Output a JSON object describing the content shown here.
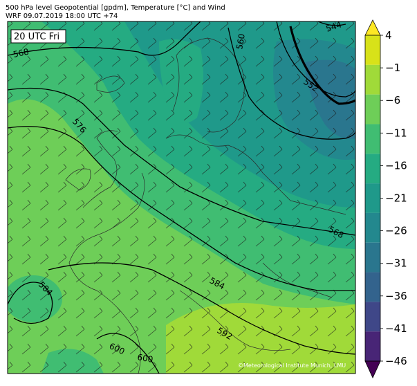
{
  "header": {
    "line1": "500 hPa level Geopotential [gpdm], Temperature [°C] and Wind",
    "line2": "WRF 09.07.2019 18:00 UTC +74"
  },
  "time_box": "20 UTC Fri",
  "copyright": "©Meteorological Institute Munich, LMU",
  "colorbar": {
    "ticks": [
      "4",
      "−1",
      "−6",
      "−11",
      "−16",
      "−21",
      "−26",
      "−31",
      "−36",
      "−41",
      "−46"
    ],
    "colors": [
      "#fde725",
      "#d8e219",
      "#a0da39",
      "#6ece58",
      "#40bd72",
      "#25ab82",
      "#1f998a",
      "#23888e",
      "#2a768e",
      "#33638d",
      "#3f4788",
      "#482576",
      "#440154"
    ]
  },
  "contours": [
    {
      "label": "544"
    },
    {
      "label": "552"
    },
    {
      "label": "560"
    },
    {
      "label": "568"
    },
    {
      "label": "568"
    },
    {
      "label": "576"
    },
    {
      "label": "584"
    },
    {
      "label": "584"
    },
    {
      "label": "592"
    },
    {
      "label": "600"
    },
    {
      "label": "600"
    }
  ]
}
